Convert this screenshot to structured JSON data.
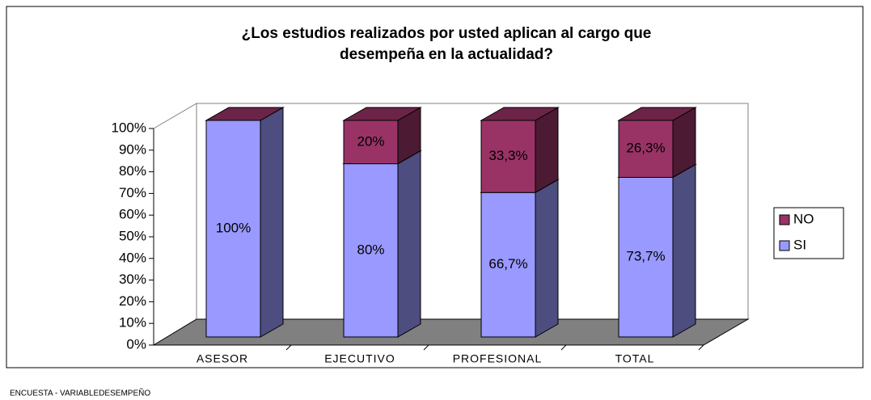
{
  "chart_data": {
    "type": "bar",
    "stacked": true,
    "title": "¿Los estudios realizados por usted aplican al cargo que desempeña en la actualidad?",
    "footnote": "ENCUESTA - VARIABLEDESEMPEÑO",
    "categories": [
      "ASESOR",
      "EJECUTIVO",
      "PROFESIONAL",
      "TOTAL"
    ],
    "series": [
      {
        "name": "SI",
        "color": "#9999ff",
        "values": [
          100,
          80,
          66.7,
          73.7
        ],
        "value_labels": [
          "100%",
          "80%",
          "66,7%",
          "73,7%"
        ]
      },
      {
        "name": "NO",
        "color": "#993366",
        "values": [
          0,
          20,
          33.3,
          26.3
        ],
        "value_labels": [
          null,
          "20%",
          "33,3%",
          "26,3%"
        ]
      }
    ],
    "ylim": [
      0,
      100
    ],
    "yticks": [
      {
        "value": 0,
        "label": "0%"
      },
      {
        "value": 10,
        "label": "10%"
      },
      {
        "value": 20,
        "label": "20%"
      },
      {
        "value": 30,
        "label": "30%"
      },
      {
        "value": 40,
        "label": "40%"
      },
      {
        "value": 50,
        "label": "50%"
      },
      {
        "value": 60,
        "label": "60%"
      },
      {
        "value": 70,
        "label": "70%"
      },
      {
        "value": 80,
        "label": "80%"
      },
      {
        "value": 90,
        "label": "90%"
      },
      {
        "value": 100,
        "label": "100%"
      }
    ],
    "legend": "right"
  }
}
